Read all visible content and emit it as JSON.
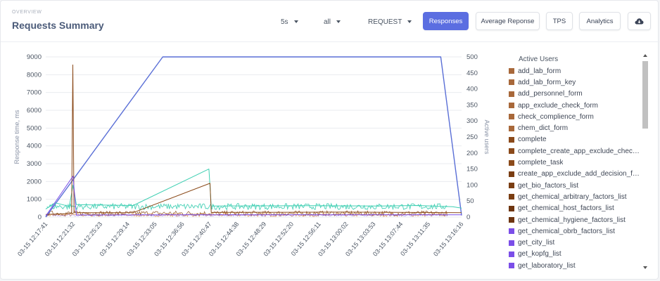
{
  "header": {
    "overline": "OVERVIEW",
    "title": "Requests Summary"
  },
  "filters": [
    {
      "value": "5s"
    },
    {
      "value": "all"
    },
    {
      "value": "REQUEST"
    }
  ],
  "buttons": [
    {
      "label": "Responses",
      "active": true
    },
    {
      "label": "Average Reponse",
      "active": false
    },
    {
      "label": "TPS",
      "active": false
    },
    {
      "label": "Analytics",
      "active": false
    }
  ],
  "download_icon": "cloud-download-icon",
  "colors": {
    "accent": "#5b6ee1",
    "active_users": "#5a6fd6",
    "teal": "#3ecfb2",
    "brown": "#8b4a1a",
    "orange": "#e08a3a",
    "purple": "#7b4ee8"
  },
  "chart_data": {
    "type": "line",
    "ylabel": "Response time, ms",
    "y2label": "Active users",
    "ylim": [
      0,
      9000
    ],
    "y2lim": [
      0,
      500
    ],
    "yticks": [
      0,
      1000,
      2000,
      3000,
      4000,
      5000,
      6000,
      7000,
      8000,
      9000
    ],
    "y2ticks": [
      0,
      50,
      100,
      150,
      200,
      250,
      300,
      350,
      400,
      450,
      500
    ],
    "x_ticks": [
      "03-15 12:17:41",
      "03-15 12:21:32",
      "03-15 12:25:23",
      "03-15 12:29:14",
      "03-15 12:33:05",
      "03-15 12:36:56",
      "03-15 12:40:47",
      "03-15 12:44:38",
      "03-15 12:48:29",
      "03-15 12:52:20",
      "03-15 12:56:11",
      "03-15 13:00:02",
      "03-15 13:03:53",
      "03-15 13:07:44",
      "03-15 13:11:35",
      "03-15 13:16:16"
    ],
    "grid": true,
    "legend_position": "right",
    "series": [
      {
        "name": "Active Users",
        "axis": "right",
        "x": [
          "03-15 12:17:41",
          "03-15 12:34:10",
          "03-15 13:13:20",
          "03-15 13:16:16"
        ],
        "values": [
          0,
          500,
          500,
          5
        ]
      },
      {
        "name": "get_laboratory_list",
        "axis": "left",
        "x": [
          "03-15 12:17:41",
          "03-15 12:19:00",
          "03-15 12:21:00",
          "03-15 12:21:32",
          "03-15 12:22:00",
          "03-15 12:30:00",
          "03-15 12:40:40",
          "03-15 12:41:00",
          "03-15 12:55:00",
          "03-15 13:05:00",
          "03-15 13:10:00",
          "03-15 13:15:00",
          "03-15 13:16:16"
        ],
        "values": [
          450,
          800,
          600,
          1800,
          700,
          650,
          2700,
          620,
          640,
          620,
          650,
          580,
          500
        ]
      },
      {
        "name": "add_lab_form",
        "axis": "left",
        "x": [
          "03-15 12:17:41",
          "03-15 12:21:20",
          "03-15 12:21:30",
          "03-15 12:21:40",
          "03-15 12:30:00",
          "03-15 12:40:50",
          "03-15 12:41:00",
          "03-15 13:00:00",
          "03-15 13:16:16"
        ],
        "values": [
          150,
          200,
          8550,
          250,
          250,
          1900,
          260,
          280,
          250
        ]
      },
      {
        "name": "app_exclude_check_form",
        "axis": "left",
        "x": [
          "03-15 12:17:41",
          "03-15 12:21:32",
          "03-15 12:22:00",
          "03-15 12:40:00",
          "03-15 13:16:16"
        ],
        "values": [
          60,
          2300,
          120,
          130,
          130
        ]
      }
    ]
  },
  "legend": {
    "title": "Active Users",
    "items": [
      {
        "name": "add_lab_form",
        "color": "#a8683a"
      },
      {
        "name": "add_lab_form_key",
        "color": "#a8683a"
      },
      {
        "name": "add_personnel_form",
        "color": "#a8683a"
      },
      {
        "name": "app_exclude_check_form",
        "color": "#a8683a"
      },
      {
        "name": "check_complience_form",
        "color": "#a8683a"
      },
      {
        "name": "chem_dict_form",
        "color": "#a8683a"
      },
      {
        "name": "complete",
        "color": "#8b4a1a"
      },
      {
        "name": "complete_create_app_exclude_check_form",
        "color": "#8b4a1a"
      },
      {
        "name": "complete_task",
        "color": "#8b4a1a"
      },
      {
        "name": "create_app_exclude_add_decision_form",
        "color": "#7a3d12"
      },
      {
        "name": "get_bio_factors_list",
        "color": "#7a3d12"
      },
      {
        "name": "get_chemical_arbitrary_factors_list",
        "color": "#7a3d12"
      },
      {
        "name": "get_chemical_host_factors_list",
        "color": "#6e3510"
      },
      {
        "name": "get_chemical_hygiene_factors_list",
        "color": "#6e3510"
      },
      {
        "name": "get_chemical_obrb_factors_list",
        "color": "#7b4ee8"
      },
      {
        "name": "get_city_list",
        "color": "#7b4ee8"
      },
      {
        "name": "get_kopfg_list",
        "color": "#7b4ee8"
      },
      {
        "name": "get_laboratory_list",
        "color": "#7b4ee8"
      }
    ]
  }
}
